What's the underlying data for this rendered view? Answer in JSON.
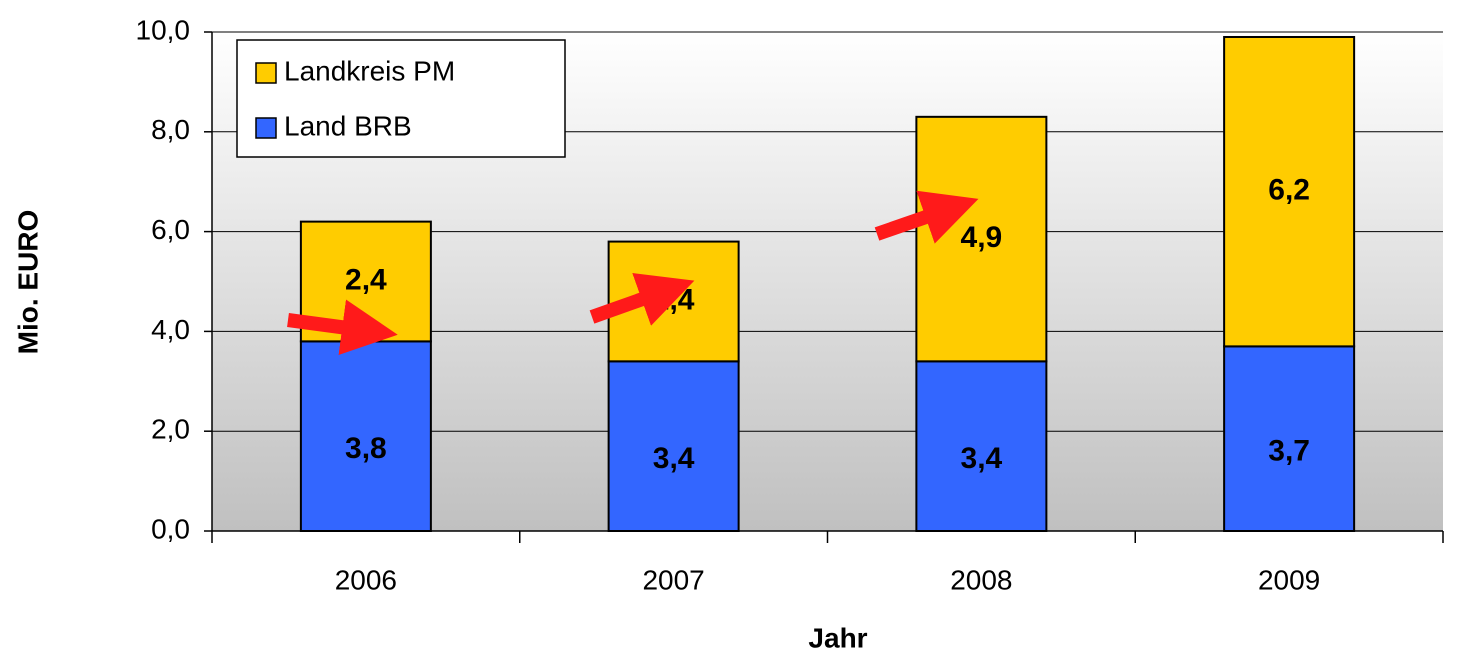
{
  "chart_data": {
    "type": "stacked_bar",
    "x_label": "Jahr",
    "y_label": "Mio. EURO",
    "categories": [
      "2006",
      "2007",
      "2008",
      "2009"
    ],
    "series": [
      {
        "name": "Land BRB",
        "color": "#3366ff",
        "values": [
          3.8,
          3.4,
          3.4,
          3.7
        ],
        "value_labels": [
          "3,8",
          "3,4",
          "3,4",
          "3,7"
        ]
      },
      {
        "name": "Landkreis PM",
        "color": "#ffcc00",
        "values": [
          2.4,
          2.4,
          4.9,
          6.2
        ],
        "value_labels": [
          "2,4",
          "2,4",
          "4,9",
          "6,2"
        ]
      }
    ],
    "ylim": [
      0,
      10
    ],
    "yticks": [
      {
        "value": 0,
        "label": "0,0"
      },
      {
        "value": 2,
        "label": "2,0"
      },
      {
        "value": 4,
        "label": "4,0"
      },
      {
        "value": 6,
        "label": "6,0"
      },
      {
        "value": 8,
        "label": "8,0"
      },
      {
        "value": 10,
        "label": "10,0"
      }
    ],
    "grid": true,
    "legend": "upper left"
  }
}
